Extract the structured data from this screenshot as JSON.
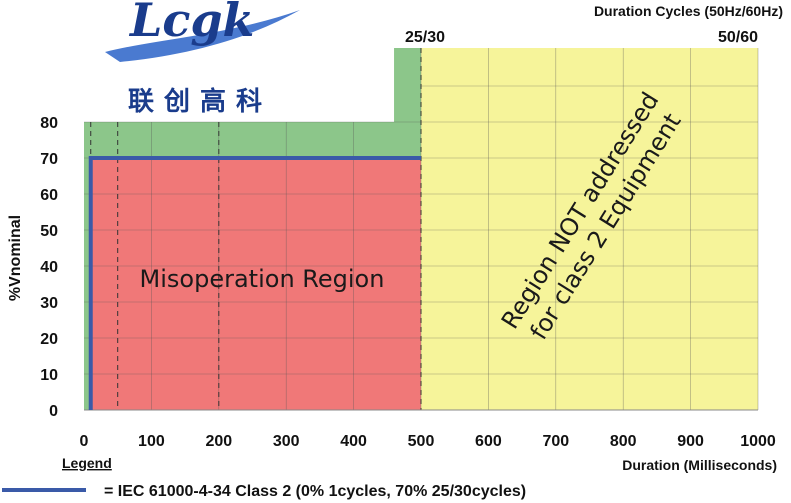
{
  "logo": {
    "text": "Lcgk",
    "chinese": "联创高科"
  },
  "chart_data": {
    "type": "area",
    "xlabel": "Duration (Milliseconds)",
    "ylabel": "%Vnominal",
    "top_axis_label": "Duration Cycles (50Hz/60Hz)",
    "top_ticks": [
      {
        "x": 500,
        "label": "25/30"
      },
      {
        "x": 1000,
        "label": "50/60"
      }
    ],
    "xlim": [
      0,
      1000
    ],
    "ylim": [
      0,
      80
    ],
    "x_ticks": [
      0,
      100,
      200,
      300,
      400,
      500,
      600,
      700,
      800,
      900,
      1000
    ],
    "y_ticks": [
      0,
      10,
      20,
      30,
      40,
      50,
      60,
      70,
      80
    ],
    "grid": true,
    "regions": [
      {
        "name": "green",
        "color": "#8cc68a",
        "x": [
          0,
          500
        ],
        "y": [
          0,
          80
        ]
      },
      {
        "name": "green-notch",
        "color": "#8cc68a",
        "x": [
          460,
          500
        ],
        "y": [
          80,
          100
        ]
      },
      {
        "name": "misoperation",
        "label": "Misoperation Region",
        "color": "#f07878",
        "x": [
          10,
          500
        ],
        "y": [
          0,
          70
        ]
      },
      {
        "name": "not-addressed",
        "label_line1": "Region NOT addressed",
        "label_line2": "for class 2 Equipment",
        "color": "#f6f49a",
        "x": [
          500,
          1000
        ],
        "y": [
          0,
          100
        ]
      }
    ],
    "dashed_lines_x": [
      10,
      50,
      200,
      500
    ],
    "series": [
      {
        "name": "IEC 61000-4-34 Class 2",
        "color": "#3a5aa8",
        "x": [
          10,
          10,
          500
        ],
        "y": [
          0,
          70,
          70
        ]
      }
    ]
  },
  "legend": {
    "title": "Legend",
    "entry": "= IEC 61000-4-34 Class 2 (0% 1cycles, 70% 25/30cycles)",
    "color": "#3a5aa8"
  }
}
